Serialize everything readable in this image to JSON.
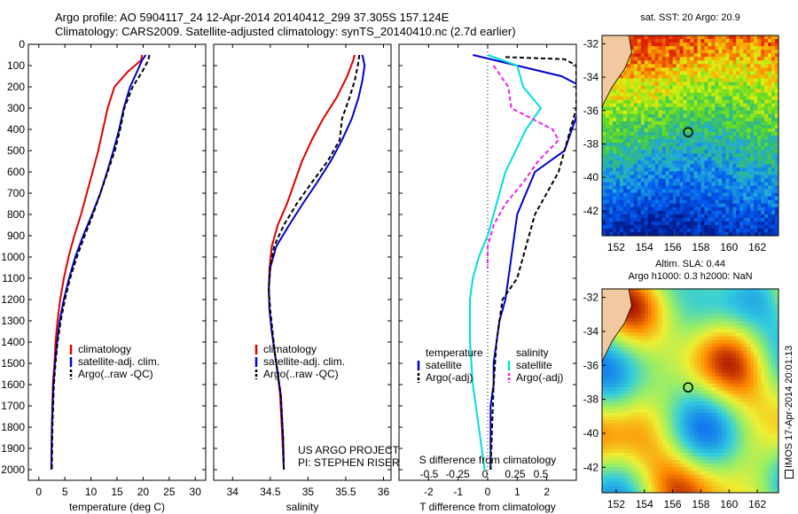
{
  "figure": {
    "title_line1": "Argo profile: AO 5904117_24 12-Apr-2014 20140412_299 37.305S 157.124E",
    "title_line2": "Climatology: CARS2009. Satellite-adjusted climatology: synTS_20140410.nc (2.7d earlier)",
    "side_stamp": "IMOS 17-Apr-2014 20:01:13",
    "project_line1": "US ARGO PROJECT",
    "project_line2": "PI: STEPHEN RISER"
  },
  "colors": {
    "climatology": "#dd0000",
    "satellite": "#0000cc",
    "argo": "#000000",
    "sal_satellite": "#00dddd",
    "sal_argo": "#ee22ee"
  },
  "chart_data": [
    {
      "type": "line",
      "xlabel": "temperature (deg C)",
      "ylabel": "",
      "xlim": [
        -2,
        32
      ],
      "ylim": [
        2050,
        0
      ],
      "xticks": [
        0,
        5,
        10,
        15,
        20,
        25,
        30
      ],
      "yticks": [
        0,
        100,
        200,
        300,
        400,
        500,
        600,
        700,
        800,
        900,
        1000,
        1100,
        1200,
        1300,
        1400,
        1500,
        1600,
        1700,
        1800,
        1900,
        2000
      ],
      "legend": [
        "climatology",
        "satellite-adj. clim.",
        "Argo(..raw -QC)"
      ],
      "legend_placement": "bottom-center",
      "series": [
        {
          "name": "climatology",
          "color": "#dd0000",
          "dash": "",
          "x": [
            19.8,
            19.6,
            17,
            14.5,
            13.2,
            12.3,
            11.4,
            10.3,
            9.2,
            8.1,
            6.8,
            5.7,
            4.8,
            4.1,
            3.6,
            3.2,
            3.0,
            2.7,
            2.5,
            2.4
          ],
          "y": [
            50,
            75,
            130,
            200,
            300,
            400,
            500,
            600,
            700,
            800,
            900,
            1000,
            1100,
            1200,
            1300,
            1400,
            1500,
            1600,
            1800,
            2000
          ]
        },
        {
          "name": "satellite-adj. clim.",
          "color": "#0000cc",
          "dash": "",
          "x": [
            20.5,
            19.8,
            18.8,
            17.5,
            16.3,
            15.4,
            14.3,
            13.1,
            11.8,
            10.2,
            8.5,
            7.0,
            5.8,
            4.8,
            4.0,
            3.5,
            3.1,
            2.8,
            2.5,
            2.4
          ],
          "y": [
            50,
            75,
            130,
            200,
            300,
            400,
            500,
            600,
            700,
            800,
            900,
            1000,
            1100,
            1200,
            1300,
            1400,
            1500,
            1600,
            1800,
            2000
          ]
        },
        {
          "name": "Argo(..raw -QC)",
          "color": "#000000",
          "dash": "5,3",
          "x": [
            21.2,
            21.0,
            19.8,
            18.0,
            16.4,
            15.6,
            14.6,
            13.2,
            11.8,
            10.4,
            8.8,
            7.3,
            6.0,
            5.0,
            4.2,
            3.6,
            3.2,
            2.9,
            2.6,
            2.5
          ],
          "y": [
            50,
            75,
            130,
            200,
            300,
            400,
            500,
            600,
            700,
            800,
            900,
            1000,
            1100,
            1200,
            1300,
            1400,
            1500,
            1600,
            1800,
            2000
          ]
        }
      ]
    },
    {
      "type": "line",
      "xlabel": "salinity",
      "xlim": [
        33.75,
        36.1
      ],
      "ylim": [
        2050,
        0
      ],
      "xticks": [
        34,
        34.5,
        35,
        35.5,
        36
      ],
      "legend": [
        "climatology",
        "satellite-adj. clim.",
        "Argo(..raw -QC)"
      ],
      "legend_placement": "bottom-center",
      "series": [
        {
          "name": "climatology",
          "color": "#dd0000",
          "dash": "",
          "x": [
            35.62,
            35.6,
            35.52,
            35.38,
            35.2,
            35.05,
            34.92,
            34.82,
            34.72,
            34.6,
            34.52,
            34.49,
            34.48,
            34.49,
            34.52,
            34.56,
            34.6,
            34.63,
            34.66,
            34.68
          ],
          "y": [
            50,
            75,
            150,
            250,
            350,
            450,
            550,
            650,
            750,
            850,
            950,
            1050,
            1150,
            1250,
            1350,
            1450,
            1550,
            1650,
            1850,
            2000
          ]
        },
        {
          "name": "satellite-adj. clim.",
          "color": "#0000cc",
          "dash": "",
          "x": [
            35.72,
            35.75,
            35.72,
            35.67,
            35.58,
            35.45,
            35.3,
            35.12,
            34.93,
            34.75,
            34.58,
            34.5,
            34.48,
            34.49,
            34.52,
            34.56,
            34.6,
            34.64,
            34.67,
            34.68
          ],
          "y": [
            50,
            100,
            170,
            250,
            350,
            450,
            550,
            650,
            750,
            850,
            950,
            1050,
            1150,
            1250,
            1350,
            1450,
            1550,
            1650,
            1850,
            2000
          ]
        },
        {
          "name": "Argo(..raw -QC)",
          "color": "#000000",
          "dash": "5,3",
          "x": [
            35.68,
            35.66,
            35.62,
            35.55,
            35.45,
            35.42,
            35.26,
            35.05,
            34.85,
            34.68,
            34.55,
            34.5,
            34.48,
            34.5,
            34.53,
            34.56,
            34.6,
            34.64,
            34.67,
            34.68
          ],
          "y": [
            50,
            100,
            170,
            250,
            350,
            450,
            550,
            650,
            750,
            850,
            950,
            1050,
            1150,
            1250,
            1350,
            1450,
            1550,
            1650,
            1850,
            2000
          ]
        }
      ]
    },
    {
      "type": "line",
      "xlabel": "T difference from climatology",
      "top_xlabel": "S difference from climatology",
      "xlim": [
        -3,
        3
      ],
      "ylim": [
        2050,
        0
      ],
      "xticks": [
        -2,
        -1,
        0,
        1,
        2
      ],
      "top_xticks": [
        "-0.5",
        "-0.25",
        "0",
        "0.25",
        "0.5"
      ],
      "legend_title_left": "temperature",
      "legend_title_right": "salinity",
      "legend": [
        "satellite",
        "Argo(-adj)",
        "satellite",
        "Argo(-adj)"
      ],
      "legend_placement": "bottom-center",
      "series": [
        {
          "name": "satellite",
          "group": "temperature",
          "color": "#0000cc",
          "dash": "",
          "x": [
            -0.5,
            1.0,
            2.5,
            3.2,
            3.1,
            2.6,
            1.6,
            1.0,
            0.8,
            0.6,
            0.4,
            0.3,
            0.2,
            0.2,
            0.1,
            0.1,
            0.1
          ],
          "y": [
            50,
            100,
            150,
            200,
            300,
            500,
            600,
            800,
            1000,
            1200,
            1300,
            1400,
            1500,
            1600,
            1700,
            1850,
            2000
          ]
        },
        {
          "name": "Argo(-adj)",
          "group": "temperature",
          "color": "#000000",
          "dash": "5,3",
          "x": [
            0.6,
            2.6,
            3.0,
            3.0,
            3.0,
            2.4,
            1.6,
            1.0,
            0.5,
            0.4,
            0.3,
            0.25,
            0.2,
            0.15,
            0.1
          ],
          "y": [
            60,
            70,
            100,
            150,
            300,
            600,
            800,
            1100,
            1200,
            1300,
            1400,
            1500,
            1600,
            1800,
            2000
          ]
        },
        {
          "name": "satellite",
          "group": "salinity",
          "color": "#00dddd",
          "dash": "",
          "x": [
            0.0,
            1.0,
            1.2,
            1.8,
            1.3,
            0.6,
            0.2,
            0.0,
            -0.3,
            -0.5,
            -0.6,
            -0.6,
            -0.5,
            -0.4,
            -0.3,
            -0.2,
            -0.1
          ],
          "y": [
            50,
            100,
            200,
            300,
            400,
            600,
            800,
            900,
            1000,
            1100,
            1200,
            1400,
            1600,
            1700,
            1800,
            1900,
            2000
          ]
        },
        {
          "name": "Argo(-adj)",
          "group": "salinity",
          "color": "#ee22ee",
          "dash": "5,3",
          "x": [
            0.2,
            0.7,
            0.8,
            2.2,
            2.4,
            1.7,
            1.2,
            0.6,
            0.2,
            0.0,
            0.0
          ],
          "y": [
            100,
            200,
            300,
            400,
            450,
            550,
            650,
            750,
            850,
            950,
            1050
          ]
        }
      ]
    },
    {
      "type": "heatmap",
      "title": "sat. SST: 20 Argo: 20.9",
      "xlim": [
        151,
        163.5
      ],
      "ylim": [
        -43.5,
        -31.5
      ],
      "xticks": [
        152,
        154,
        156,
        158,
        160,
        162
      ],
      "yticks": [
        -32,
        -34,
        -36,
        -38,
        -40,
        -42
      ],
      "marker": [
        157.1,
        -37.3
      ]
    },
    {
      "type": "heatmap",
      "title_line1": "Altim. SLA: 0.44",
      "title_line2": "Argo h1000: 0.3 h2000: NaN",
      "xlim": [
        151,
        163.5
      ],
      "ylim": [
        -43.5,
        -31.5
      ],
      "xticks": [
        152,
        154,
        156,
        158,
        160,
        162
      ],
      "yticks": [
        -32,
        -34,
        -36,
        -38,
        -40,
        -42
      ],
      "marker": [
        157.1,
        -37.3
      ]
    }
  ]
}
